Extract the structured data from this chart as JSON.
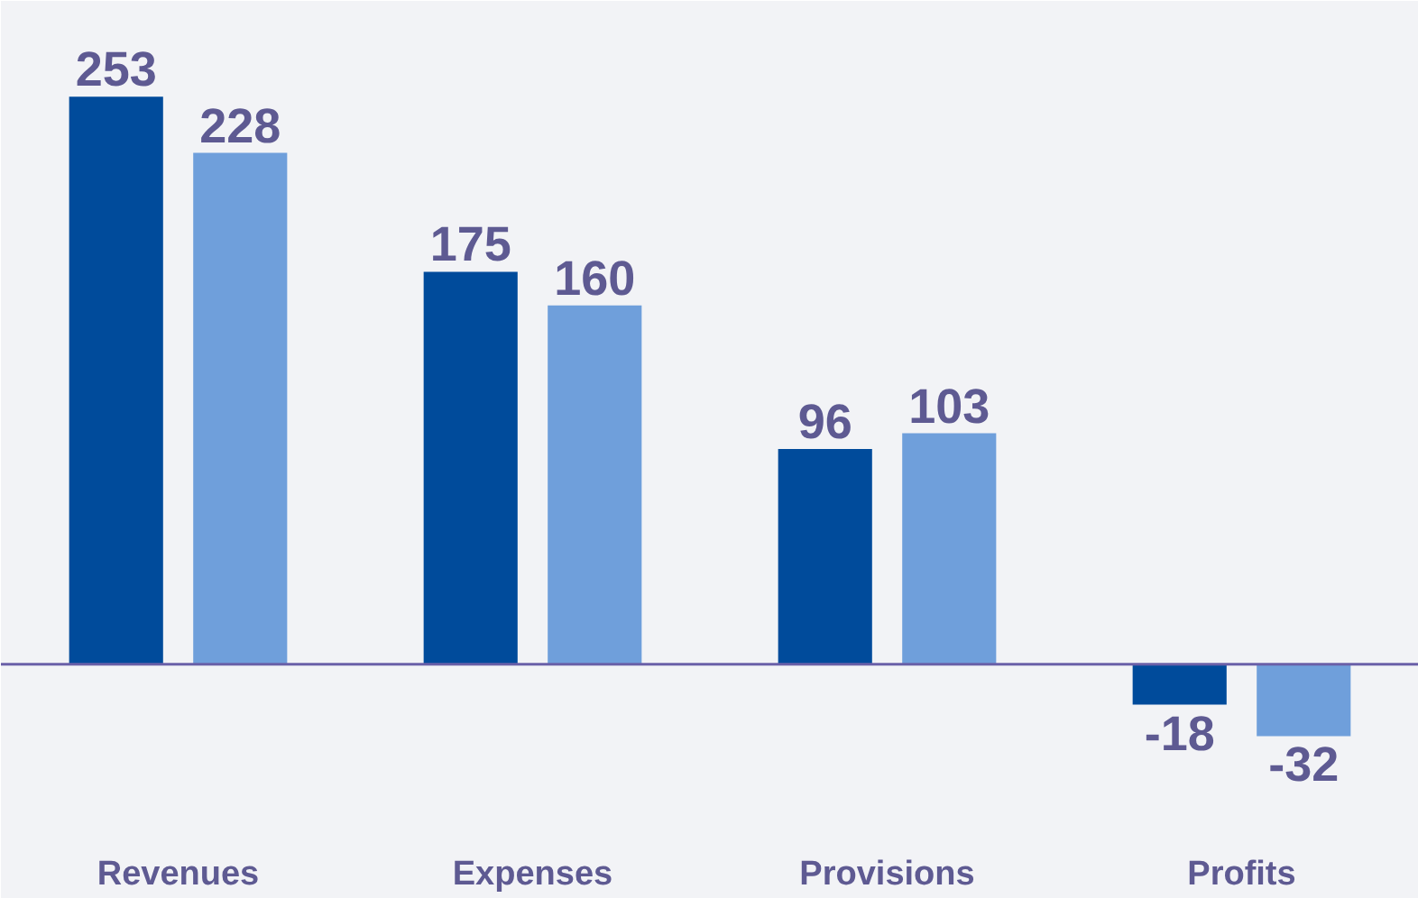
{
  "chart_data": {
    "type": "bar",
    "categories": [
      "Revenues",
      "Expenses",
      "Provisions",
      "Profits"
    ],
    "series": [
      {
        "color": "#004b9b",
        "values": [
          253,
          175,
          96,
          -18
        ]
      },
      {
        "color": "#6f9fdb",
        "values": [
          228,
          160,
          103,
          -32
        ]
      }
    ],
    "ref_lines": [
      {
        "axis": "y",
        "value": 0,
        "color": "#6a60a8"
      }
    ],
    "data_labels": true,
    "tick_labels": "x"
  }
}
